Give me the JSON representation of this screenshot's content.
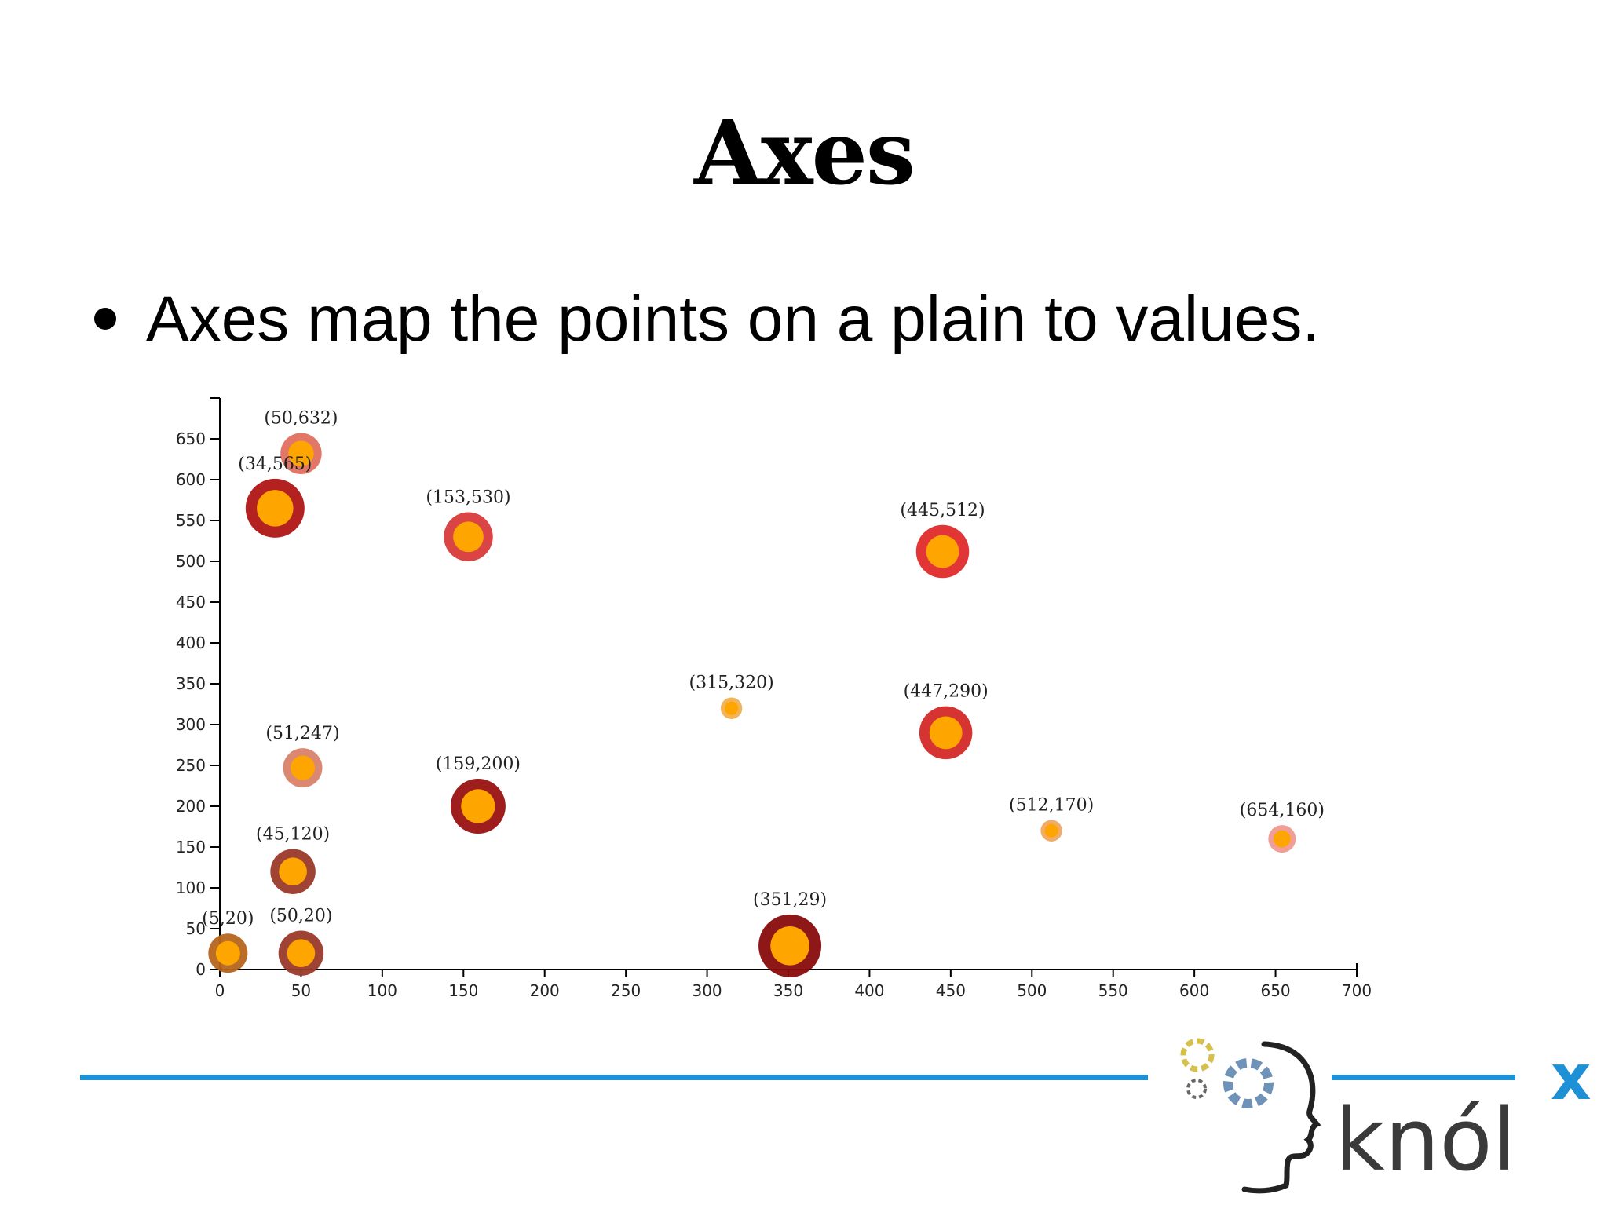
{
  "slide": {
    "title": "Axes",
    "bullet": "Axes map the points on a plain to values."
  },
  "logo": {
    "text": "knól",
    "superscript": "x"
  },
  "colors": {
    "rule": "#1e90d6",
    "point_fill": "#ffa500"
  },
  "chart_data": {
    "type": "scatter",
    "xlim": [
      0,
      700
    ],
    "ylim": [
      0,
      700
    ],
    "x_ticks": [
      0,
      50,
      100,
      150,
      200,
      250,
      300,
      350,
      400,
      450,
      500,
      550,
      600,
      650,
      700
    ],
    "y_ticks": [
      0,
      50,
      100,
      150,
      200,
      250,
      300,
      350,
      400,
      450,
      500,
      550,
      600,
      650
    ],
    "grid": false,
    "points": [
      {
        "x": 5,
        "y": 20,
        "label": "(5,20)",
        "size": 20,
        "ring": "#b5651d"
      },
      {
        "x": 50,
        "y": 20,
        "label": "(50,20)",
        "size": 23,
        "ring": "#9a3a2a"
      },
      {
        "x": 45,
        "y": 120,
        "label": "(45,120)",
        "size": 23,
        "ring": "#9a3a2a"
      },
      {
        "x": 51,
        "y": 247,
        "label": "(51,247)",
        "size": 20,
        "ring": "#d9826a"
      },
      {
        "x": 50,
        "y": 632,
        "label": "(50,632)",
        "size": 21,
        "ring": "#e0705f"
      },
      {
        "x": 34,
        "y": 565,
        "label": "(34,565)",
        "size": 30,
        "ring": "#b01515"
      },
      {
        "x": 153,
        "y": 530,
        "label": "(153,530)",
        "size": 25,
        "ring": "#d83a3a"
      },
      {
        "x": 159,
        "y": 200,
        "label": "(159,200)",
        "size": 28,
        "ring": "#991111"
      },
      {
        "x": 315,
        "y": 320,
        "label": "(315,320)",
        "size": 11,
        "ring": "#f0b050"
      },
      {
        "x": 351,
        "y": 29,
        "label": "(351,29)",
        "size": 32,
        "ring": "#880b0b"
      },
      {
        "x": 445,
        "y": 512,
        "label": "(445,512)",
        "size": 27,
        "ring": "#e02a2a"
      },
      {
        "x": 447,
        "y": 290,
        "label": "(447,290)",
        "size": 27,
        "ring": "#d42828"
      },
      {
        "x": 512,
        "y": 170,
        "label": "(512,170)",
        "size": 11,
        "ring": "#f0a860"
      },
      {
        "x": 654,
        "y": 160,
        "label": "(654,160)",
        "size": 14,
        "ring": "#f09a90"
      }
    ]
  }
}
